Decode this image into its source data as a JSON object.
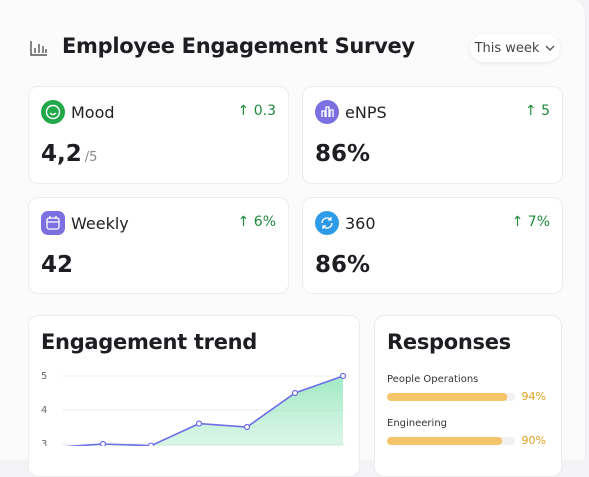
{
  "header": {
    "title": "Employee Engagement Survey",
    "period": "This week"
  },
  "cards": [
    {
      "label": "Mood",
      "delta": "0.3",
      "value": "4,2",
      "unit": "/5"
    },
    {
      "label": "eNPS",
      "delta": "5",
      "value": "86%"
    },
    {
      "label": "Weekly",
      "delta": "6%",
      "value": "42"
    },
    {
      "label": "360",
      "delta": "7%",
      "value": "86%"
    }
  ],
  "trend": {
    "title": "Engagement trend",
    "ylim": [
      3,
      5
    ],
    "yticks": [
      5,
      4,
      3
    ],
    "values": [
      2.9,
      3.0,
      2.95,
      3.6,
      3.5,
      4.5,
      5.0
    ]
  },
  "responses": {
    "title": "Responses",
    "items": [
      {
        "name": "People Operations",
        "value": 94,
        "value_label": "94%"
      },
      {
        "name": "Engineering",
        "value": 90,
        "value_label": "90%"
      }
    ]
  }
}
